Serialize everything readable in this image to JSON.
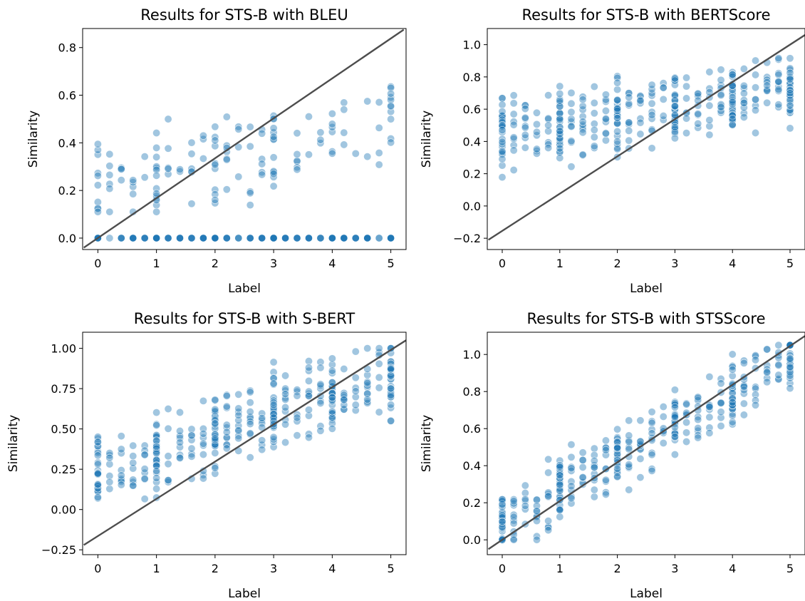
{
  "colors": {
    "point_fill": "#1f77b4",
    "point_stroke": "#ffffff",
    "identity_line": "#4d4d4d",
    "axes": "#000000",
    "background": "#ffffff"
  },
  "chart_data": [
    {
      "type": "scatter",
      "title": "Results for STS-B with BLEU",
      "xlabel": "Label",
      "ylabel": "Similarity",
      "xlim": [
        -0.26,
        5.26
      ],
      "ylim": [
        -0.048,
        0.88
      ],
      "xticks": [
        "0",
        "1",
        "2",
        "3",
        "4",
        "5"
      ],
      "yticks": [
        "0.0",
        "0.2",
        "0.4",
        "0.6",
        "0.8"
      ],
      "ytick_values": [
        0.0,
        0.2,
        0.4,
        0.6,
        0.8
      ],
      "identity_line": {
        "x": [
          -0.24,
          5.22
        ],
        "y": [
          -0.04,
          0.875
        ]
      },
      "grid": false,
      "legend": "none",
      "scatter_model": {
        "zero_fraction": 0.55,
        "slope": 0.06,
        "intercept": 0.2,
        "spread": 0.12,
        "min": 0.11,
        "max": 0.83
      }
    },
    {
      "type": "scatter",
      "title": "Results for STS-B with BERTScore",
      "xlabel": "Label",
      "ylabel": "Similarity",
      "xlim": [
        -0.26,
        5.26
      ],
      "ylim": [
        -0.27,
        1.1
      ],
      "xticks": [
        "0",
        "1",
        "2",
        "3",
        "4",
        "5"
      ],
      "yticks": [
        "−0.2",
        "0.0",
        "0.2",
        "0.4",
        "0.6",
        "0.8",
        "1.0"
      ],
      "ytick_values": [
        -0.2,
        0.0,
        0.2,
        0.4,
        0.6,
        0.8,
        1.0
      ],
      "identity_line": {
        "x": [
          -0.24,
          5.26
        ],
        "y": [
          -0.21,
          1.06
        ]
      },
      "grid": false,
      "legend": "none",
      "scatter_model": {
        "zero_fraction": 0.0,
        "slope": 0.06,
        "intercept": 0.43,
        "spread": 0.15,
        "min": -0.15,
        "max": 0.99
      }
    },
    {
      "type": "scatter",
      "title": "Results for STS-B with S-BERT",
      "xlabel": "Label",
      "ylabel": "Similarity",
      "xlim": [
        -0.26,
        5.26
      ],
      "ylim": [
        -0.28,
        1.1
      ],
      "xticks": [
        "0",
        "1",
        "2",
        "3",
        "4",
        "5"
      ],
      "yticks": [
        "−0.25",
        "0.00",
        "0.25",
        "0.50",
        "0.75",
        "1.00"
      ],
      "ytick_values": [
        -0.25,
        0.0,
        0.25,
        0.5,
        0.75,
        1.0
      ],
      "identity_line": {
        "x": [
          -0.24,
          5.26
        ],
        "y": [
          -0.22,
          1.05
        ]
      },
      "grid": false,
      "legend": "none",
      "scatter_model": {
        "zero_fraction": 0.0,
        "slope": 0.12,
        "intercept": 0.22,
        "spread": 0.16,
        "min": -0.16,
        "max": 1.0
      }
    },
    {
      "type": "scatter",
      "title": "Results for STS-B with STSScore",
      "xlabel": "Label",
      "ylabel": "Similarity",
      "xlim": [
        -0.26,
        5.26
      ],
      "ylim": [
        -0.08,
        1.12
      ],
      "xticks": [
        "0",
        "1",
        "2",
        "3",
        "4",
        "5"
      ],
      "yticks": [
        "0.0",
        "0.2",
        "0.4",
        "0.6",
        "0.8",
        "1.0"
      ],
      "ytick_values": [
        0.0,
        0.2,
        0.4,
        0.6,
        0.8,
        1.0
      ],
      "identity_line": {
        "x": [
          -0.24,
          5.26
        ],
        "y": [
          -0.05,
          1.1
        ]
      },
      "grid": false,
      "legend": "none",
      "scatter_model": {
        "zero_fraction": 0.0,
        "slope": 0.18,
        "intercept": 0.08,
        "spread": 0.12,
        "min": 0.0,
        "max": 1.05
      }
    }
  ]
}
